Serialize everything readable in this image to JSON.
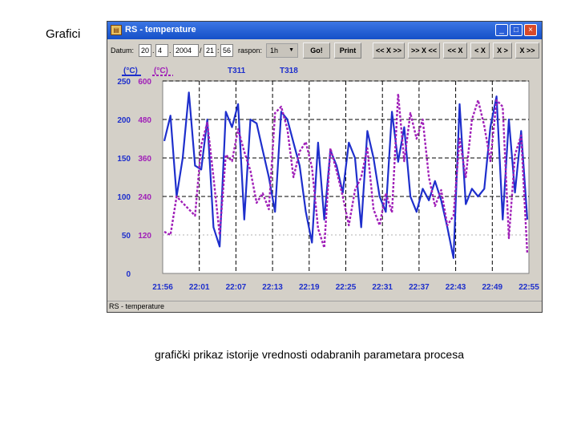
{
  "slide": {
    "title": "Grafici",
    "caption": "grafički prikaz istorije vrednosti odabranih parametara procesa"
  },
  "window": {
    "title": "RS - temperature",
    "buttons": {
      "minimize": "_",
      "maximize": "□",
      "close": "×"
    },
    "status": "RS - temperature"
  },
  "toolbar": {
    "date_label": "Datum:",
    "day": "20",
    "month": "4",
    "year": "2004",
    "hour": "21",
    "minute": "56",
    "sep_dot": ".",
    "sep_slash": "/",
    "sep_colon": ":",
    "range_label": "raspon:",
    "range_value": "1h",
    "go_label": "Go!",
    "print_label": "Print",
    "nav_buttons": [
      "<< X >>",
      ">> X <<",
      "<< X",
      "< X",
      "X >",
      "X >>"
    ]
  },
  "colors": {
    "series_a": "#1e2fcc",
    "series_b": "#a020b8",
    "plot_bg": "#ffffff",
    "panel_bg": "#d4d0c8",
    "title_bar": "#2a5fd8"
  },
  "chart_data": {
    "type": "line",
    "unit_headers": [
      "(°C)",
      "(°C)"
    ],
    "legend": [
      "T311",
      "T318"
    ],
    "y_left_ticks": [
      250,
      200,
      150,
      100,
      50,
      0
    ],
    "y_right_ticks": [
      600,
      480,
      360,
      240,
      120
    ],
    "y_zero_label": "0",
    "x_ticks": [
      "21:56",
      "22:01",
      "22:07",
      "22:13",
      "22:19",
      "22:25",
      "22:31",
      "22:37",
      "22:43",
      "22:49",
      "22:55"
    ],
    "ylim_left": [
      0,
      250
    ],
    "ylim_right": [
      0,
      600
    ],
    "grid": true,
    "series": [
      {
        "name": "T311",
        "axis": "left",
        "color": "#1e2fcc",
        "style": "solid",
        "values": [
          172,
          205,
          100,
          150,
          235,
          140,
          135,
          200,
          60,
          35,
          210,
          190,
          220,
          70,
          200,
          195,
          160,
          125,
          80,
          210,
          200,
          170,
          140,
          80,
          40,
          170,
          70,
          160,
          140,
          105,
          170,
          150,
          60,
          185,
          150,
          100,
          80,
          210,
          145,
          190,
          100,
          80,
          110,
          95,
          120,
          95,
          60,
          20,
          220,
          90,
          110,
          100,
          110,
          190,
          230,
          70,
          200,
          105,
          185,
          70
        ]
      },
      {
        "name": "T318",
        "axis": "right",
        "color": "#a020b8",
        "style": "dashed",
        "values": [
          130,
          120,
          240,
          220,
          200,
          180,
          400,
          470,
          300,
          120,
          370,
          350,
          450,
          380,
          320,
          220,
          250,
          200,
          500,
          520,
          450,
          300,
          380,
          410,
          330,
          140,
          80,
          390,
          320,
          240,
          150,
          260,
          300,
          390,
          200,
          150,
          250,
          190,
          560,
          350,
          500,
          420,
          480,
          300,
          210,
          260,
          150,
          180,
          420,
          300,
          480,
          540,
          460,
          350,
          540,
          520,
          110,
          370,
          430,
          60
        ]
      }
    ]
  }
}
